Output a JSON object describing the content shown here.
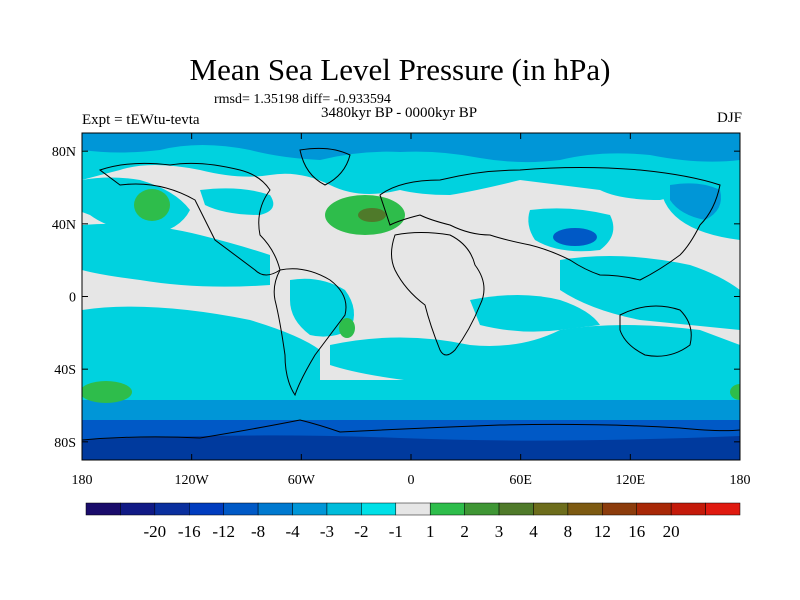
{
  "title": "Mean Sea Level Pressure (in hPa)",
  "stats": "rmsd= 1.35198 diff= -0.933594",
  "experiment": "Expt = tEWtu-tevta",
  "period": "3480kyr BP - 0000kyr BP",
  "season": "DJF",
  "map": {
    "lon_range": [
      -180,
      180
    ],
    "lat_range": [
      -90,
      90
    ],
    "x_ticks": [
      {
        "value": -180,
        "label": "180"
      },
      {
        "value": -120,
        "label": "120W"
      },
      {
        "value": -60,
        "label": "60W"
      },
      {
        "value": 0,
        "label": "0"
      },
      {
        "value": 60,
        "label": "60E"
      },
      {
        "value": 120,
        "label": "120E"
      },
      {
        "value": 180,
        "label": "180"
      }
    ],
    "y_ticks": [
      {
        "value": 80,
        "label": "80N"
      },
      {
        "value": 40,
        "label": "40N"
      },
      {
        "value": 0,
        "label": "0"
      },
      {
        "value": -40,
        "label": "40S"
      },
      {
        "value": -80,
        "label": "80S"
      }
    ],
    "colors": {
      "neutral": "#e6e6e6",
      "light_cyan": "#00d2df",
      "medium_blue": "#0096d7",
      "blue": "#0059c6",
      "deep_blue": "#003a9e",
      "green": "#2ebd4b",
      "olive": "#4f7a2a"
    }
  },
  "colorbar": {
    "colors": [
      "#1a0c6b",
      "#111a85",
      "#0a2f9e",
      "#003cbe",
      "#0059c6",
      "#0079cf",
      "#0096d7",
      "#00bcdb",
      "#00e0e7",
      "#e6e6e6",
      "#2ebd4b",
      "#3f9635",
      "#4f7a2a",
      "#6d6d1c",
      "#7d5a12",
      "#8c3c0c",
      "#a82807",
      "#c41a0a",
      "#e01a10"
    ],
    "labels": [
      "-20",
      "-16",
      "-12",
      "-8",
      "-4",
      "-3",
      "-2",
      "-1",
      "1",
      "2",
      "3",
      "4",
      "8",
      "12",
      "16",
      "20"
    ]
  }
}
